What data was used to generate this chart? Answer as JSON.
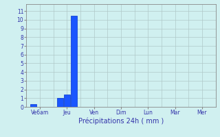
{
  "bars": [
    {
      "x": 1,
      "height": 0.3
    },
    {
      "x": 5,
      "height": 1.0
    },
    {
      "x": 6,
      "height": 1.4
    },
    {
      "x": 7,
      "height": 10.5
    }
  ],
  "x_tick_positions": [
    2,
    6,
    10,
    14,
    18,
    22,
    26
  ],
  "x_tick_labels": [
    "Ve6am",
    "Jeu",
    "Ven",
    "Dim",
    "Lun",
    "Mar",
    "Mer"
  ],
  "y_tick_positions": [
    0,
    1,
    2,
    3,
    4,
    5,
    6,
    7,
    8,
    9,
    10,
    11
  ],
  "ylim": [
    0,
    11.8
  ],
  "xlim": [
    0,
    28
  ],
  "bar_width": 0.9,
  "bar_color": "#1a56ff",
  "bar_edge_color": "#0033cc",
  "bg_color": "#d0f0f0",
  "grid_color": "#b0c8c8",
  "xlabel": "Précipitations 24h ( mm )",
  "xlabel_color": "#3333aa",
  "tick_color": "#3333aa",
  "axis_color": "#888888",
  "separator_positions": [
    4,
    8,
    12,
    16,
    20,
    24,
    28
  ]
}
